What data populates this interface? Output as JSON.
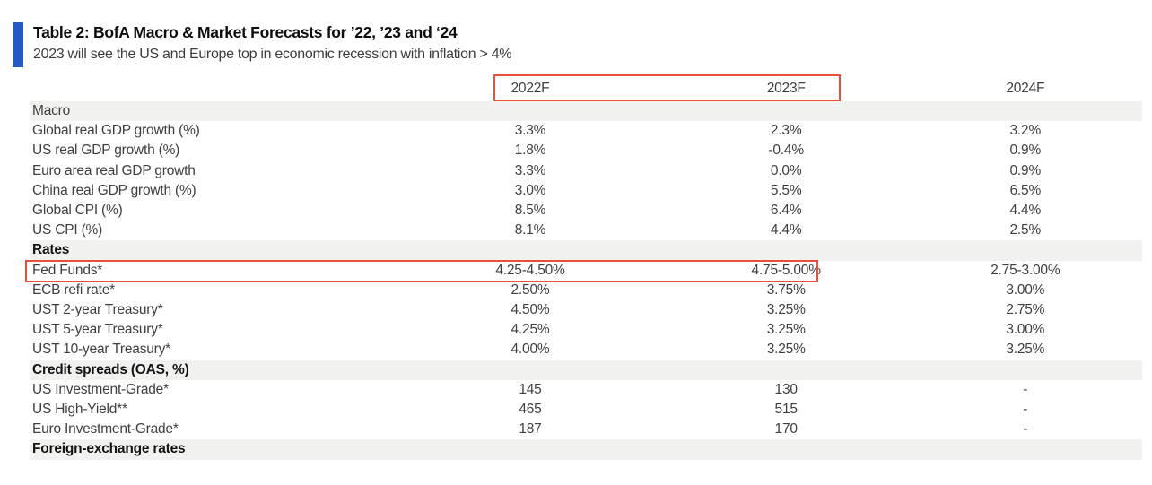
{
  "header": {
    "title": "Table 2: BofA Macro & Market Forecasts for ’22, ’23 and ‘24",
    "subtitle": "2023 will see the US and Europe top in economic recession with inflation > 4%"
  },
  "colors": {
    "accent_blue": "#2659c8",
    "highlight_red": "#e8503a",
    "section_band_gray": "#f1f1ef"
  },
  "table": {
    "columns": [
      "",
      "2022F",
      "2023F",
      "2024F"
    ],
    "sections": [
      {
        "label": "Macro",
        "bold": false,
        "rows": [
          {
            "label": "Global real GDP growth (%)",
            "f2022": "3.3%",
            "f2023": "2.3%",
            "f2024": "3.2%"
          },
          {
            "label": "US real GDP growth (%)",
            "f2022": "1.8%",
            "f2023": "-0.4%",
            "f2024": "0.9%"
          },
          {
            "label": "Euro area real GDP growth",
            "f2022": "3.3%",
            "f2023": "0.0%",
            "f2024": "0.9%"
          },
          {
            "label": "China real GDP growth (%)",
            "f2022": "3.0%",
            "f2023": "5.5%",
            "f2024": "6.5%"
          },
          {
            "label": "Global CPI (%)",
            "f2022": "8.5%",
            "f2023": "6.4%",
            "f2024": "4.4%"
          },
          {
            "label": "US CPI (%)",
            "f2022": "8.1%",
            "f2023": "4.4%",
            "f2024": "2.5%"
          }
        ]
      },
      {
        "label": "Rates",
        "bold": true,
        "rows": [
          {
            "label": "Fed Funds*",
            "f2022": "4.25-4.50%",
            "f2023": "4.75-5.00%",
            "f2024": "2.75-3.00%"
          },
          {
            "label": "ECB refi rate*",
            "f2022": "2.50%",
            "f2023": "3.75%",
            "f2024": "3.00%"
          },
          {
            "label": "UST 2-year Treasury*",
            "f2022": "4.50%",
            "f2023": "3.25%",
            "f2024": "2.75%"
          },
          {
            "label": "UST 5-year Treasury*",
            "f2022": "4.25%",
            "f2023": "3.25%",
            "f2024": "3.00%"
          },
          {
            "label": "UST 10-year Treasury*",
            "f2022": "4.00%",
            "f2023": "3.25%",
            "f2024": "3.25%"
          }
        ]
      },
      {
        "label": "Credit spreads (OAS, %)",
        "bold": true,
        "rows": [
          {
            "label": "US Investment-Grade*",
            "f2022": "145",
            "f2023": "130",
            "f2024": "-"
          },
          {
            "label": "US High-Yield**",
            "f2022": "465",
            "f2023": "515",
            "f2024": "-"
          },
          {
            "label": "Euro Investment-Grade*",
            "f2022": "187",
            "f2023": "170",
            "f2024": "-"
          }
        ]
      },
      {
        "label": "Foreign-exchange rates",
        "bold": true,
        "rows": []
      }
    ]
  }
}
